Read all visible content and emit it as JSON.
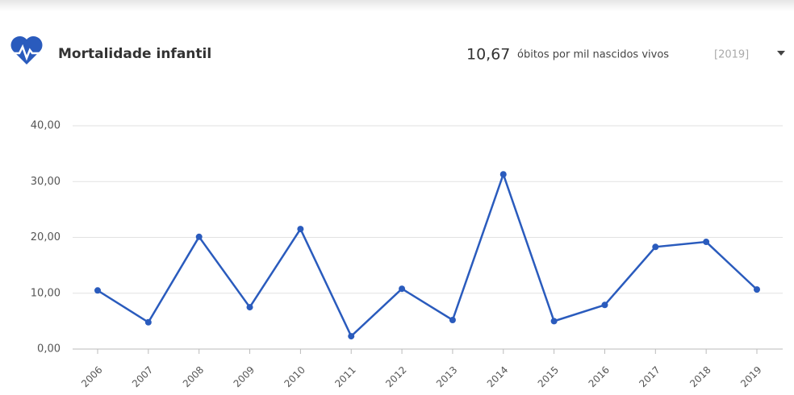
{
  "header": {
    "indicator_value": "10,67",
    "unit": "óbitos por mil nascidos vivos",
    "year": "[2019]"
  },
  "chart_data": {
    "type": "line",
    "title": "Mortalidade infantil",
    "categories": [
      "2006",
      "2007",
      "2008",
      "2009",
      "2010",
      "2011",
      "2012",
      "2013",
      "2014",
      "2015",
      "2016",
      "2017",
      "2018",
      "2019"
    ],
    "series": [
      {
        "name": "Mortalidade infantil",
        "color": "#2a5bbd",
        "values": [
          10.5,
          4.8,
          20.1,
          7.5,
          21.5,
          2.3,
          10.8,
          5.2,
          31.3,
          5.0,
          7.9,
          18.3,
          19.2,
          10.67
        ]
      }
    ],
    "ylim": [
      0,
      40
    ],
    "yticks": [
      {
        "value": 0,
        "label": "0,00"
      },
      {
        "value": 10,
        "label": "10,00"
      },
      {
        "value": 20,
        "label": "20,00"
      },
      {
        "value": 30,
        "label": "30,00"
      },
      {
        "value": 40,
        "label": "40,00"
      }
    ],
    "grid": true
  }
}
